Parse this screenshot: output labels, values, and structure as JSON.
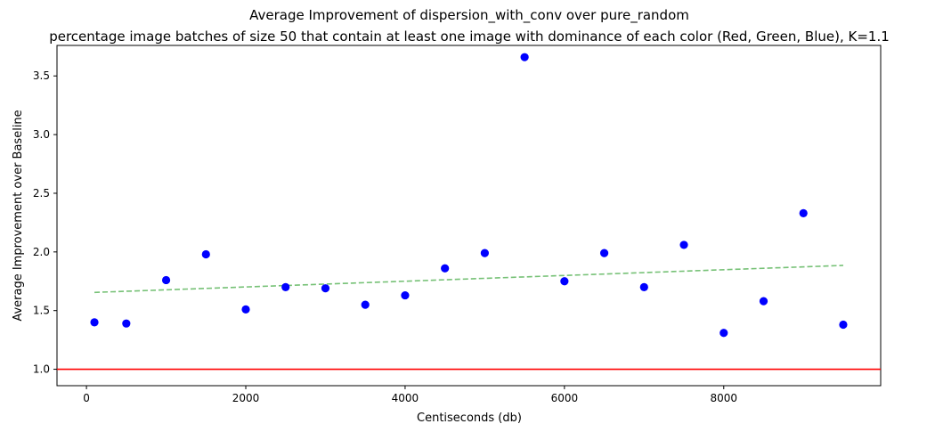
{
  "chart_data": {
    "type": "scatter",
    "title": "Average Improvement of dispersion_with_conv over pure_random",
    "subtitle": "percentage image batches of size 50 that contain at least one image with dominance of each color (Red, Green, Blue), K=1.1",
    "xlabel": "Centiseconds (db)",
    "ylabel": "Average Improvement over Baseline",
    "xlim": [
      -370,
      9970
    ],
    "ylim": [
      0.86,
      3.76
    ],
    "xticks": [
      0,
      2000,
      4000,
      6000,
      8000
    ],
    "xtick_labels": [
      "0",
      "2000",
      "4000",
      "6000",
      "8000"
    ],
    "yticks": [
      1.0,
      1.5,
      2.0,
      2.5,
      3.0,
      3.5
    ],
    "ytick_labels": [
      "1.0",
      "1.5",
      "2.0",
      "2.5",
      "3.0",
      "3.5"
    ],
    "grid": false,
    "series": [
      {
        "kind": "points",
        "color": "#0000ff",
        "x": [
          100,
          500,
          1000,
          1500,
          2000,
          2500,
          3000,
          3500,
          4000,
          4500,
          5000,
          5500,
          6000,
          6500,
          7000,
          7500,
          8000,
          8500,
          9000,
          9500
        ],
        "y": [
          1.4,
          1.39,
          1.76,
          1.98,
          1.51,
          1.7,
          1.69,
          1.55,
          1.63,
          1.86,
          1.99,
          3.66,
          1.75,
          1.99,
          1.7,
          2.06,
          1.31,
          1.58,
          2.33,
          1.38
        ]
      },
      {
        "kind": "trend",
        "color": "#2ca02c",
        "style": "dashed",
        "x": [
          100,
          9500
        ],
        "y": [
          1.655,
          1.885
        ]
      },
      {
        "kind": "baseline",
        "color": "#ff0000",
        "style": "solid",
        "y": 1.0
      }
    ]
  }
}
